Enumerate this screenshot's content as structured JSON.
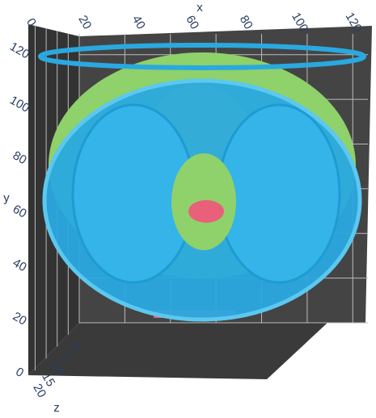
{
  "chart_data": {
    "type": "isosurface",
    "xlabel": "x",
    "ylabel": "y",
    "zlabel": "z",
    "xlim": [
      0,
      127
    ],
    "ylim": [
      0,
      130
    ],
    "zlim": [
      0,
      22
    ],
    "xticks": [
      0,
      20,
      40,
      60,
      80,
      100,
      120
    ],
    "yticks": [
      0,
      20,
      40,
      60,
      80,
      100,
      120
    ],
    "zticks": [
      0,
      5,
      10,
      15,
      20
    ],
    "colors": [
      "#2aa9e0",
      "#8fd16a",
      "#e6e63a",
      "#e8607a"
    ]
  }
}
